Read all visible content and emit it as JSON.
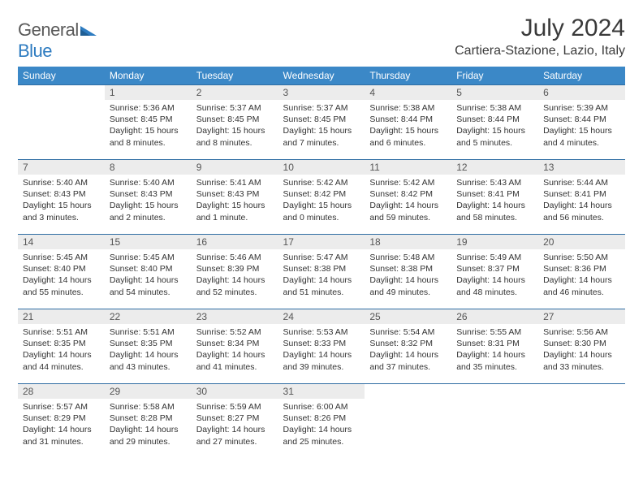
{
  "logo": {
    "word1": "General",
    "word2": "Blue"
  },
  "title": "July 2024",
  "location": "Cartiera-Stazione, Lazio, Italy",
  "colors": {
    "header_bg": "#3b88c7",
    "header_text": "#ffffff",
    "row_border": "#2f6da3",
    "daynum_bg": "#ececec",
    "daynum_text": "#555555",
    "body_text": "#333333",
    "logo_gray": "#5a5a5a",
    "logo_blue": "#2d7bc0",
    "title_color": "#3a3a3a",
    "page_bg": "#ffffff"
  },
  "typography": {
    "month_title_pt": 30,
    "location_pt": 16,
    "dayhead_pt": 12,
    "daynum_pt": 12,
    "body_pt": 10.5
  },
  "day_headers": [
    "Sunday",
    "Monday",
    "Tuesday",
    "Wednesday",
    "Thursday",
    "Friday",
    "Saturday"
  ],
  "weeks": [
    [
      {
        "n": "",
        "lines": []
      },
      {
        "n": "1",
        "lines": [
          "Sunrise: 5:36 AM",
          "Sunset: 8:45 PM",
          "Daylight: 15 hours",
          "and 8 minutes."
        ]
      },
      {
        "n": "2",
        "lines": [
          "Sunrise: 5:37 AM",
          "Sunset: 8:45 PM",
          "Daylight: 15 hours",
          "and 8 minutes."
        ]
      },
      {
        "n": "3",
        "lines": [
          "Sunrise: 5:37 AM",
          "Sunset: 8:45 PM",
          "Daylight: 15 hours",
          "and 7 minutes."
        ]
      },
      {
        "n": "4",
        "lines": [
          "Sunrise: 5:38 AM",
          "Sunset: 8:44 PM",
          "Daylight: 15 hours",
          "and 6 minutes."
        ]
      },
      {
        "n": "5",
        "lines": [
          "Sunrise: 5:38 AM",
          "Sunset: 8:44 PM",
          "Daylight: 15 hours",
          "and 5 minutes."
        ]
      },
      {
        "n": "6",
        "lines": [
          "Sunrise: 5:39 AM",
          "Sunset: 8:44 PM",
          "Daylight: 15 hours",
          "and 4 minutes."
        ]
      }
    ],
    [
      {
        "n": "7",
        "lines": [
          "Sunrise: 5:40 AM",
          "Sunset: 8:43 PM",
          "Daylight: 15 hours",
          "and 3 minutes."
        ]
      },
      {
        "n": "8",
        "lines": [
          "Sunrise: 5:40 AM",
          "Sunset: 8:43 PM",
          "Daylight: 15 hours",
          "and 2 minutes."
        ]
      },
      {
        "n": "9",
        "lines": [
          "Sunrise: 5:41 AM",
          "Sunset: 8:43 PM",
          "Daylight: 15 hours",
          "and 1 minute."
        ]
      },
      {
        "n": "10",
        "lines": [
          "Sunrise: 5:42 AM",
          "Sunset: 8:42 PM",
          "Daylight: 15 hours",
          "and 0 minutes."
        ]
      },
      {
        "n": "11",
        "lines": [
          "Sunrise: 5:42 AM",
          "Sunset: 8:42 PM",
          "Daylight: 14 hours",
          "and 59 minutes."
        ]
      },
      {
        "n": "12",
        "lines": [
          "Sunrise: 5:43 AM",
          "Sunset: 8:41 PM",
          "Daylight: 14 hours",
          "and 58 minutes."
        ]
      },
      {
        "n": "13",
        "lines": [
          "Sunrise: 5:44 AM",
          "Sunset: 8:41 PM",
          "Daylight: 14 hours",
          "and 56 minutes."
        ]
      }
    ],
    [
      {
        "n": "14",
        "lines": [
          "Sunrise: 5:45 AM",
          "Sunset: 8:40 PM",
          "Daylight: 14 hours",
          "and 55 minutes."
        ]
      },
      {
        "n": "15",
        "lines": [
          "Sunrise: 5:45 AM",
          "Sunset: 8:40 PM",
          "Daylight: 14 hours",
          "and 54 minutes."
        ]
      },
      {
        "n": "16",
        "lines": [
          "Sunrise: 5:46 AM",
          "Sunset: 8:39 PM",
          "Daylight: 14 hours",
          "and 52 minutes."
        ]
      },
      {
        "n": "17",
        "lines": [
          "Sunrise: 5:47 AM",
          "Sunset: 8:38 PM",
          "Daylight: 14 hours",
          "and 51 minutes."
        ]
      },
      {
        "n": "18",
        "lines": [
          "Sunrise: 5:48 AM",
          "Sunset: 8:38 PM",
          "Daylight: 14 hours",
          "and 49 minutes."
        ]
      },
      {
        "n": "19",
        "lines": [
          "Sunrise: 5:49 AM",
          "Sunset: 8:37 PM",
          "Daylight: 14 hours",
          "and 48 minutes."
        ]
      },
      {
        "n": "20",
        "lines": [
          "Sunrise: 5:50 AM",
          "Sunset: 8:36 PM",
          "Daylight: 14 hours",
          "and 46 minutes."
        ]
      }
    ],
    [
      {
        "n": "21",
        "lines": [
          "Sunrise: 5:51 AM",
          "Sunset: 8:35 PM",
          "Daylight: 14 hours",
          "and 44 minutes."
        ]
      },
      {
        "n": "22",
        "lines": [
          "Sunrise: 5:51 AM",
          "Sunset: 8:35 PM",
          "Daylight: 14 hours",
          "and 43 minutes."
        ]
      },
      {
        "n": "23",
        "lines": [
          "Sunrise: 5:52 AM",
          "Sunset: 8:34 PM",
          "Daylight: 14 hours",
          "and 41 minutes."
        ]
      },
      {
        "n": "24",
        "lines": [
          "Sunrise: 5:53 AM",
          "Sunset: 8:33 PM",
          "Daylight: 14 hours",
          "and 39 minutes."
        ]
      },
      {
        "n": "25",
        "lines": [
          "Sunrise: 5:54 AM",
          "Sunset: 8:32 PM",
          "Daylight: 14 hours",
          "and 37 minutes."
        ]
      },
      {
        "n": "26",
        "lines": [
          "Sunrise: 5:55 AM",
          "Sunset: 8:31 PM",
          "Daylight: 14 hours",
          "and 35 minutes."
        ]
      },
      {
        "n": "27",
        "lines": [
          "Sunrise: 5:56 AM",
          "Sunset: 8:30 PM",
          "Daylight: 14 hours",
          "and 33 minutes."
        ]
      }
    ],
    [
      {
        "n": "28",
        "lines": [
          "Sunrise: 5:57 AM",
          "Sunset: 8:29 PM",
          "Daylight: 14 hours",
          "and 31 minutes."
        ]
      },
      {
        "n": "29",
        "lines": [
          "Sunrise: 5:58 AM",
          "Sunset: 8:28 PM",
          "Daylight: 14 hours",
          "and 29 minutes."
        ]
      },
      {
        "n": "30",
        "lines": [
          "Sunrise: 5:59 AM",
          "Sunset: 8:27 PM",
          "Daylight: 14 hours",
          "and 27 minutes."
        ]
      },
      {
        "n": "31",
        "lines": [
          "Sunrise: 6:00 AM",
          "Sunset: 8:26 PM",
          "Daylight: 14 hours",
          "and 25 minutes."
        ]
      },
      {
        "n": "",
        "lines": []
      },
      {
        "n": "",
        "lines": []
      },
      {
        "n": "",
        "lines": []
      }
    ]
  ]
}
